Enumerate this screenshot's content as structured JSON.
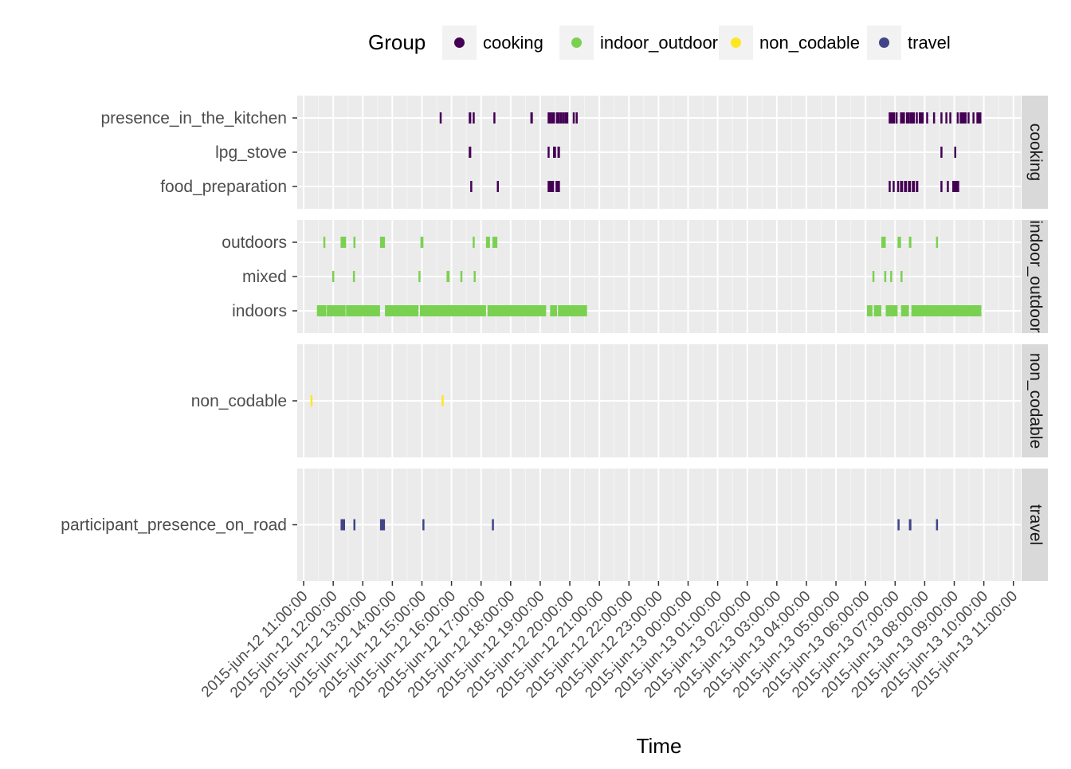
{
  "chart_data": {
    "type": "timeline",
    "xlabel": "Time",
    "legend": {
      "title": "Group",
      "position": "top",
      "items": [
        {
          "name": "cooking",
          "color": "#440154"
        },
        {
          "name": "indoor_outdoor",
          "color": "#7AD151"
        },
        {
          "name": "non_codable",
          "color": "#FDE725"
        },
        {
          "name": "travel",
          "color": "#414487"
        }
      ]
    },
    "x_ticks": [
      "2015-jun-12 11:00:00",
      "2015-jun-12 12:00:00",
      "2015-jun-12 13:00:00",
      "2015-jun-12 14:00:00",
      "2015-jun-12 15:00:00",
      "2015-jun-12 16:00:00",
      "2015-jun-12 17:00:00",
      "2015-jun-12 18:00:00",
      "2015-jun-12 19:00:00",
      "2015-jun-12 20:00:00",
      "2015-jun-12 21:00:00",
      "2015-jun-12 22:00:00",
      "2015-jun-12 23:00:00",
      "2015-jun-13 00:00:00",
      "2015-jun-13 01:00:00",
      "2015-jun-13 02:00:00",
      "2015-jun-13 03:00:00",
      "2015-jun-13 04:00:00",
      "2015-jun-13 05:00:00",
      "2015-jun-13 06:00:00",
      "2015-jun-13 07:00:00",
      "2015-jun-13 08:00:00",
      "2015-jun-13 09:00:00",
      "2015-jun-13 10:00:00",
      "2015-jun-13 11:00:00"
    ],
    "x_range": [
      "2015-jun-12 10:47:00",
      "2015-jun-13 11:15:00"
    ],
    "grid": true,
    "panels": [
      {
        "group": "cooking",
        "strip_label": "cooking",
        "rows": [
          {
            "label": "presence_in_the_kitchen",
            "intervals": [
              [
                "2015-jun-12 15:36:00",
                "2015-jun-12 15:40:00"
              ],
              [
                "2015-jun-12 16:35:00",
                "2015-jun-12 16:40:00"
              ],
              [
                "2015-jun-12 16:43:00",
                "2015-jun-12 16:47:00"
              ],
              [
                "2015-jun-12 17:25:00",
                "2015-jun-12 17:28:00"
              ],
              [
                "2015-jun-12 18:40:00",
                "2015-jun-12 18:45:00"
              ],
              [
                "2015-jun-12 19:15:00",
                "2015-jun-12 19:22:00"
              ],
              [
                "2015-jun-12 19:22:00",
                "2015-jun-12 19:30:00"
              ],
              [
                "2015-jun-12 19:32:00",
                "2015-jun-12 19:40:00"
              ],
              [
                "2015-jun-12 19:40:00",
                "2015-jun-12 19:45:00"
              ],
              [
                "2015-jun-12 19:45:00",
                "2015-jun-12 19:50:00"
              ],
              [
                "2015-jun-12 19:50:00",
                "2015-jun-12 19:57:00"
              ],
              [
                "2015-jun-12 20:06:00",
                "2015-jun-12 20:10:00"
              ],
              [
                "2015-jun-12 20:12:00",
                "2015-jun-12 20:16:00"
              ],
              [
                "2015-jun-13 06:47:00",
                "2015-jun-13 07:00:00"
              ],
              [
                "2015-jun-13 07:01:00",
                "2015-jun-13 07:05:00"
              ],
              [
                "2015-jun-13 07:10:00",
                "2015-jun-13 07:20:00"
              ],
              [
                "2015-jun-13 07:22:00",
                "2015-jun-13 07:30:00"
              ],
              [
                "2015-jun-13 07:30:00",
                "2015-jun-13 07:40:00"
              ],
              [
                "2015-jun-13 07:42:00",
                "2015-jun-13 07:46:00"
              ],
              [
                "2015-jun-13 07:48:00",
                "2015-jun-13 07:58:00"
              ],
              [
                "2015-jun-13 08:03:00",
                "2015-jun-13 08:07:00"
              ],
              [
                "2015-jun-13 08:17:00",
                "2015-jun-13 08:20:00"
              ],
              [
                "2015-jun-13 08:32:00",
                "2015-jun-13 08:36:00"
              ],
              [
                "2015-jun-13 08:42:00",
                "2015-jun-13 08:45:00"
              ],
              [
                "2015-jun-13 08:50:00",
                "2015-jun-13 08:53:00"
              ],
              [
                "2015-jun-13 09:05:00",
                "2015-jun-13 09:09:00"
              ],
              [
                "2015-jun-13 09:11:00",
                "2015-jun-13 09:25:00"
              ],
              [
                "2015-jun-13 09:27:00",
                "2015-jun-13 09:30:00"
              ],
              [
                "2015-jun-13 09:37:00",
                "2015-jun-13 09:40:00"
              ],
              [
                "2015-jun-13 09:45:00",
                "2015-jun-13 09:55:00"
              ]
            ]
          },
          {
            "label": "lpg_stove",
            "intervals": [
              [
                "2015-jun-12 16:35:00",
                "2015-jun-12 16:40:00"
              ],
              [
                "2015-jun-12 19:15:00",
                "2015-jun-12 19:19:00"
              ],
              [
                "2015-jun-12 19:26:00",
                "2015-jun-12 19:32:00"
              ],
              [
                "2015-jun-12 19:35:00",
                "2015-jun-12 19:40:00"
              ],
              [
                "2015-jun-13 08:32:00",
                "2015-jun-13 08:35:00"
              ],
              [
                "2015-jun-13 09:00:00",
                "2015-jun-13 09:03:00"
              ]
            ]
          },
          {
            "label": "food_preparation",
            "intervals": [
              [
                "2015-jun-12 16:38:00",
                "2015-jun-12 16:41:00"
              ],
              [
                "2015-jun-12 17:32:00",
                "2015-jun-12 17:35:00"
              ],
              [
                "2015-jun-12 19:15:00",
                "2015-jun-12 19:28:00"
              ],
              [
                "2015-jun-12 19:31:00",
                "2015-jun-12 19:40:00"
              ],
              [
                "2015-jun-13 06:47:00",
                "2015-jun-13 06:50:00"
              ],
              [
                "2015-jun-13 06:55:00",
                "2015-jun-13 06:58:00"
              ],
              [
                "2015-jun-13 07:04:00",
                "2015-jun-13 07:08:00"
              ],
              [
                "2015-jun-13 07:10:00",
                "2015-jun-13 07:16:00"
              ],
              [
                "2015-jun-13 07:18:00",
                "2015-jun-13 07:24:00"
              ],
              [
                "2015-jun-13 07:26:00",
                "2015-jun-13 07:32:00"
              ],
              [
                "2015-jun-13 07:34:00",
                "2015-jun-13 07:40:00"
              ],
              [
                "2015-jun-13 07:42:00",
                "2015-jun-13 07:47:00"
              ],
              [
                "2015-jun-13 08:32:00",
                "2015-jun-13 08:36:00"
              ],
              [
                "2015-jun-13 08:45:00",
                "2015-jun-13 08:48:00"
              ],
              [
                "2015-jun-13 08:56:00",
                "2015-jun-13 09:10:00"
              ]
            ]
          }
        ]
      },
      {
        "group": "indoor_outdoor",
        "strip_label": "indoor_outdoor",
        "rows": [
          {
            "label": "outdoors",
            "intervals": [
              [
                "2015-jun-12 11:40:00",
                "2015-jun-12 11:43:00"
              ],
              [
                "2015-jun-12 12:15:00",
                "2015-jun-12 12:26:00"
              ],
              [
                "2015-jun-12 12:41:00",
                "2015-jun-12 12:45:00"
              ],
              [
                "2015-jun-12 13:35:00",
                "2015-jun-12 13:45:00"
              ],
              [
                "2015-jun-12 14:57:00",
                "2015-jun-12 15:03:00"
              ],
              [
                "2015-jun-12 16:43:00",
                "2015-jun-12 16:45:00"
              ],
              [
                "2015-jun-12 17:10:00",
                "2015-jun-12 17:18:00"
              ],
              [
                "2015-jun-12 17:23:00",
                "2015-jun-12 17:33:00"
              ],
              [
                "2015-jun-13 06:32:00",
                "2015-jun-13 06:41:00"
              ],
              [
                "2015-jun-13 07:05:00",
                "2015-jun-13 07:12:00"
              ],
              [
                "2015-jun-13 07:28:00",
                "2015-jun-13 07:33:00"
              ],
              [
                "2015-jun-13 08:23:00",
                "2015-jun-13 08:27:00"
              ]
            ]
          },
          {
            "label": "mixed",
            "intervals": [
              [
                "2015-jun-12 11:58:00",
                "2015-jun-12 12:01:00"
              ],
              [
                "2015-jun-12 12:40:00",
                "2015-jun-12 12:43:00"
              ],
              [
                "2015-jun-12 14:53:00",
                "2015-jun-12 14:56:00"
              ],
              [
                "2015-jun-12 15:50:00",
                "2015-jun-12 15:56:00"
              ],
              [
                "2015-jun-12 16:18:00",
                "2015-jun-12 16:22:00"
              ],
              [
                "2015-jun-12 16:45:00",
                "2015-jun-12 16:47:00"
              ],
              [
                "2015-jun-13 06:14:00",
                "2015-jun-13 06:17:00"
              ],
              [
                "2015-jun-13 06:38:00",
                "2015-jun-13 06:41:00"
              ],
              [
                "2015-jun-13 06:50:00",
                "2015-jun-13 06:53:00"
              ],
              [
                "2015-jun-13 07:11:00",
                "2015-jun-13 07:14:00"
              ]
            ]
          },
          {
            "label": "indoors",
            "intervals": [
              [
                "2015-jun-12 11:27:00",
                "2015-jun-12 11:46:00"
              ],
              [
                "2015-jun-12 11:47:00",
                "2015-jun-12 12:25:00"
              ],
              [
                "2015-jun-12 12:26:00",
                "2015-jun-12 13:35:00"
              ],
              [
                "2015-jun-12 13:45:00",
                "2015-jun-12 14:53:00"
              ],
              [
                "2015-jun-12 14:56:00",
                "2015-jun-12 17:10:00"
              ],
              [
                "2015-jun-12 17:13:00",
                "2015-jun-12 19:12:00"
              ],
              [
                "2015-jun-12 19:20:00",
                "2015-jun-12 19:34:00"
              ],
              [
                "2015-jun-12 19:36:00",
                "2015-jun-12 20:35:00"
              ],
              [
                "2015-jun-13 06:03:00",
                "2015-jun-13 06:14:00"
              ],
              [
                "2015-jun-13 06:17:00",
                "2015-jun-13 06:32:00"
              ],
              [
                "2015-jun-13 06:41:00",
                "2015-jun-13 07:05:00"
              ],
              [
                "2015-jun-13 07:12:00",
                "2015-jun-13 07:28:00"
              ],
              [
                "2015-jun-13 07:33:00",
                "2015-jun-13 09:55:00"
              ]
            ]
          }
        ]
      },
      {
        "group": "non_codable",
        "strip_label": "non_codable",
        "rows": [
          {
            "label": "non_codable",
            "intervals": [
              [
                "2015-jun-12 11:14:00",
                "2015-jun-12 11:16:00"
              ],
              [
                "2015-jun-12 15:40:00",
                "2015-jun-12 15:42:00"
              ]
            ]
          }
        ]
      },
      {
        "group": "travel",
        "strip_label": "travel",
        "rows": [
          {
            "label": "participant_presence_on_road",
            "intervals": [
              [
                "2015-jun-12 12:15:00",
                "2015-jun-12 12:24:00"
              ],
              [
                "2015-jun-12 12:41:00",
                "2015-jun-12 12:45:00"
              ],
              [
                "2015-jun-12 13:35:00",
                "2015-jun-12 13:45:00"
              ],
              [
                "2015-jun-12 15:01:00",
                "2015-jun-12 15:04:00"
              ],
              [
                "2015-jun-12 17:22:00",
                "2015-jun-12 17:25:00"
              ],
              [
                "2015-jun-13 07:05:00",
                "2015-jun-13 07:08:00"
              ],
              [
                "2015-jun-13 07:28:00",
                "2015-jun-13 07:33:00"
              ],
              [
                "2015-jun-13 08:23:00",
                "2015-jun-13 08:26:00"
              ]
            ]
          }
        ]
      }
    ]
  }
}
